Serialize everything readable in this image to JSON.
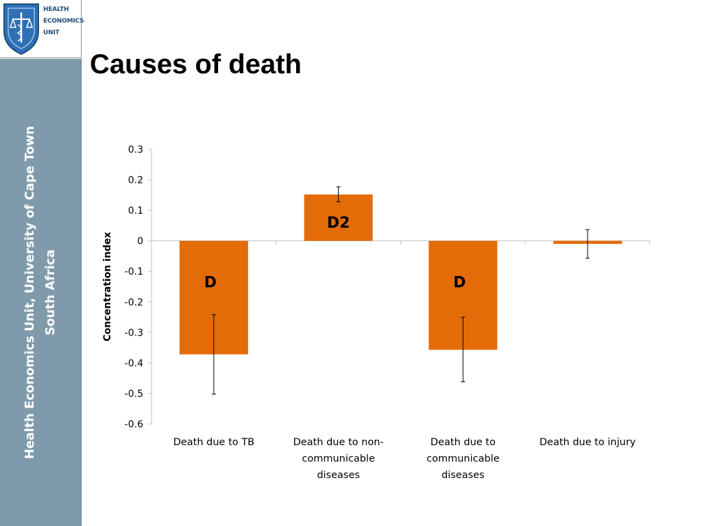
{
  "logo": {
    "line1": "HEALTH",
    "line2": "ECONOMICS",
    "line3": "UNIT"
  },
  "sidebar": {
    "line1": "Health Economics Unit, University of Cape Town",
    "line2": "South Africa"
  },
  "title": "Causes of death",
  "colors": {
    "bar": "#e36c09",
    "sidebar": "#7f9bab",
    "logo_blue": "#1f4e79",
    "axis": "#bfbfbf"
  },
  "chart_data": {
    "type": "bar",
    "title": "",
    "xlabel": "",
    "ylabel": "Concentration index",
    "ylim": [
      -0.6,
      0.3
    ],
    "yticks": [
      "0.3",
      "0.2",
      "0.1",
      "0",
      "-0.1",
      "-0.2",
      "-0.3",
      "-0.4",
      "-0.5",
      "-0.6"
    ],
    "ytick_values": [
      0.3,
      0.2,
      0.1,
      0,
      -0.1,
      -0.2,
      -0.3,
      -0.4,
      -0.5,
      -0.6
    ],
    "grid": false,
    "categories": [
      [
        "Death due to TB"
      ],
      [
        "Death due to non-",
        "communicable",
        "diseases"
      ],
      [
        "Death due to",
        "communicable",
        "diseases"
      ],
      [
        "Death due to injury"
      ]
    ],
    "values": [
      -0.372,
      0.152,
      -0.357,
      -0.01
    ],
    "error_low": [
      -0.502,
      0.128,
      -0.462,
      -0.057
    ],
    "error_high": [
      -0.242,
      0.177,
      -0.25,
      0.037
    ],
    "annotations": [
      "D",
      "D2",
      "D",
      ""
    ]
  }
}
